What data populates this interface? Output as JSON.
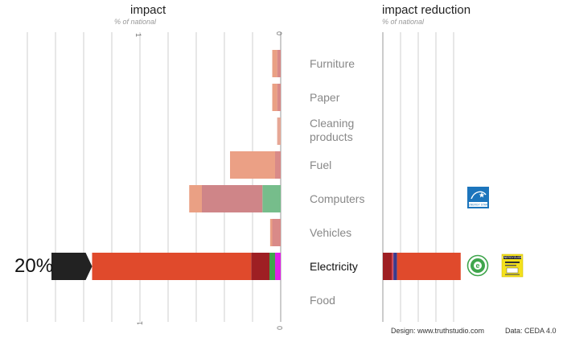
{
  "chart_data": {
    "type": "bar",
    "panels": [
      {
        "title": "impact",
        "subtitle": "% of national",
        "tick_labels": [
          "1",
          "0"
        ],
        "xlim": [
          0,
          1.75
        ]
      },
      {
        "title": "impact reduction",
        "subtitle": "% of national"
      }
    ],
    "categories": [
      "Furniture",
      "Paper",
      "Cleaning products",
      "Fuel",
      "Computers",
      "Vehicles",
      "Electricity",
      "Food"
    ],
    "highlighted_category": "Electricity",
    "highlight_value_label": "20%",
    "impact_segments": [
      {
        "category": "Furniture",
        "segments": [
          {
            "value": 0.035,
            "color": "#eaa084"
          },
          {
            "value": 0.025,
            "color": "#d98a88"
          }
        ]
      },
      {
        "category": "Paper",
        "segments": [
          {
            "value": 0.035,
            "color": "#eaa084"
          },
          {
            "value": 0.025,
            "color": "#d98a88"
          }
        ]
      },
      {
        "category": "Cleaning products",
        "segments": [
          {
            "value": 0.025,
            "color": "#e6a796"
          }
        ]
      },
      {
        "category": "Fuel",
        "segments": [
          {
            "value": 0.32,
            "color": "#eba085"
          },
          {
            "value": 0.04,
            "color": "#d98a88"
          }
        ]
      },
      {
        "category": "Computers",
        "segments": [
          {
            "value": 0.09,
            "color": "#eaa084"
          },
          {
            "value": 0.43,
            "color": "#cf8588"
          },
          {
            "value": 0.13,
            "color": "#76bd8b"
          }
        ]
      },
      {
        "category": "Vehicles",
        "segments": [
          {
            "value": 0.015,
            "color": "#eaa084"
          },
          {
            "value": 0.06,
            "color": "#d98a88"
          }
        ]
      },
      {
        "category": "Electricity",
        "segments": [
          {
            "value": 1.13,
            "color": "#e04a2c"
          },
          {
            "value": 0.13,
            "color": "#9e1f23"
          },
          {
            "value": 0.04,
            "color": "#3fa54c"
          },
          {
            "value": 0.04,
            "color": "#e020e8"
          }
        ]
      }
    ],
    "impact_overflow": {
      "category": "Electricity",
      "color": "#222222"
    },
    "reduction_segments": [
      {
        "category": "Electricity",
        "segments": [
          {
            "value": 0.05,
            "color": "#9e1f23"
          },
          {
            "value": 0.01,
            "color": "#d04b5a"
          },
          {
            "value": 0.02,
            "color": "#3a3a8c"
          },
          {
            "value": 0.36,
            "color": "#e04a2c"
          }
        ]
      }
    ],
    "grid": true
  },
  "badges": [
    {
      "category": "Computers",
      "name": "energy-star-icon",
      "text": "ENERGY STAR",
      "color": "#1c75bc"
    },
    {
      "category": "Electricity",
      "name": "green-e-icon",
      "text": "e",
      "color": "#3fa54c"
    },
    {
      "category": "Electricity",
      "name": "energy-guide-label-icon",
      "text": "ENERGYGUIDE",
      "color": "#f4e11c"
    }
  ],
  "footer": {
    "design": "Design: www.truthstudio.com",
    "data": "Data: CEDA 4.0"
  }
}
